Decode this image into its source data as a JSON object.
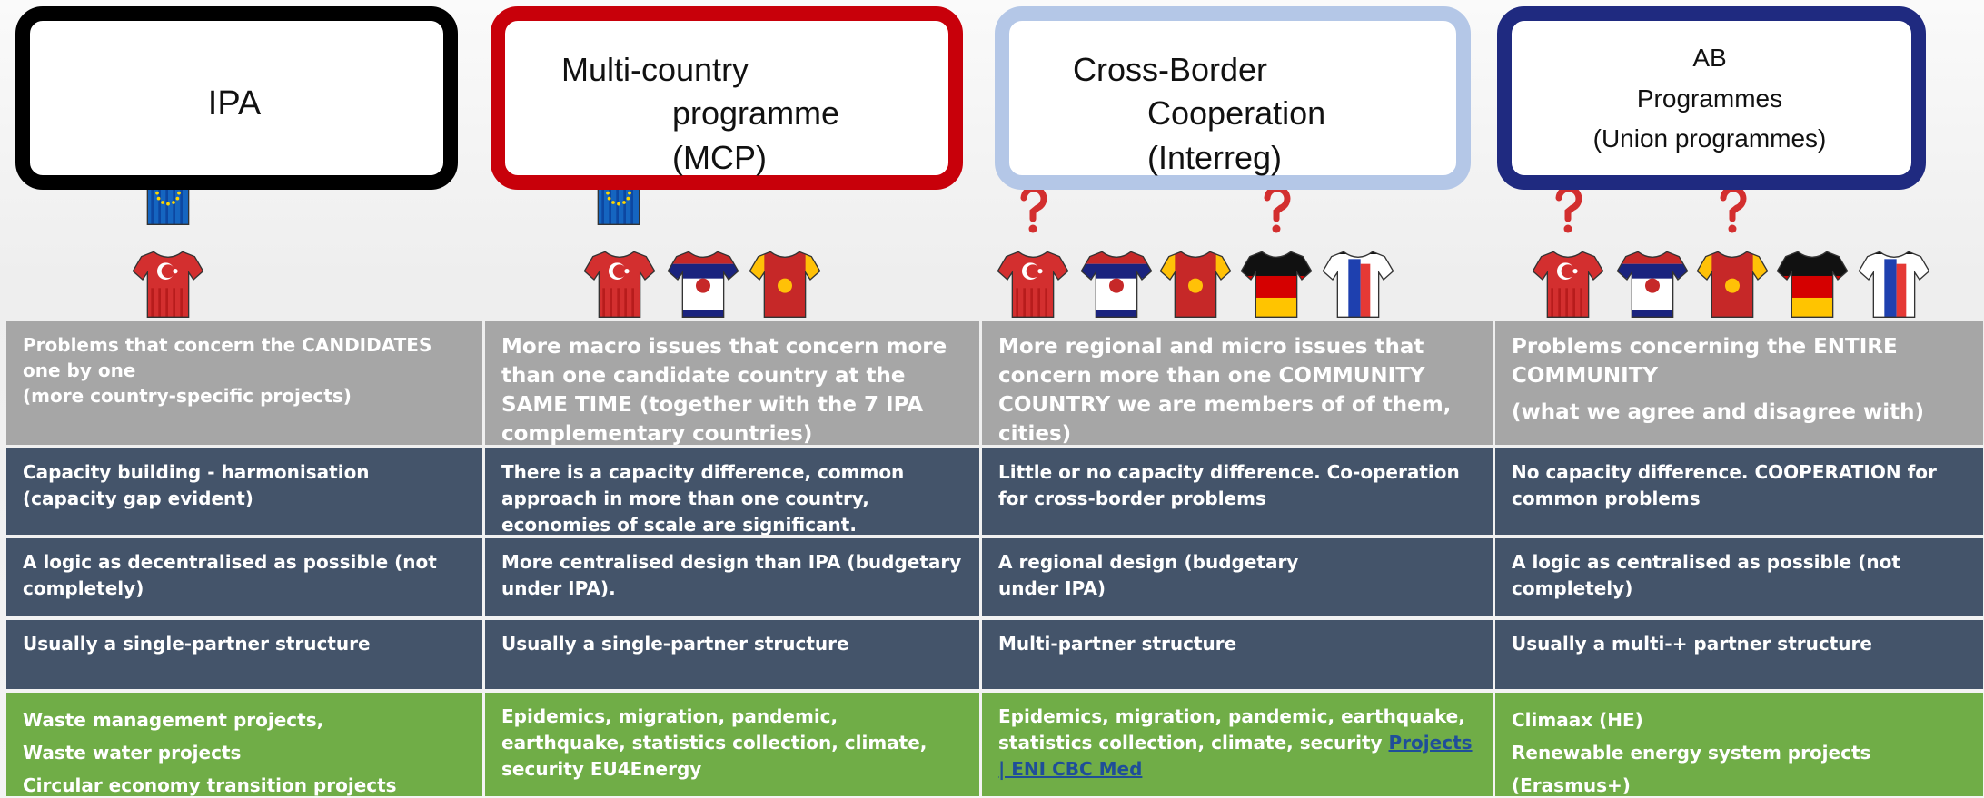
{
  "headers": [
    {
      "lines": [
        "IPA"
      ]
    },
    {
      "lines": [
        "Multi-country",
        "programme",
        "(MCP)"
      ]
    },
    {
      "lines": [
        "Cross-Border",
        "Cooperation",
        "(Interreg)"
      ]
    },
    {
      "lines": [
        "AB",
        "Programmes",
        "(Union programmes)"
      ]
    }
  ],
  "table": {
    "rows": [
      [
        {
          "paragraphs": [
            "Problems that concern the CANDIDATES one by one",
            "(more country-specific projects)"
          ]
        },
        {
          "paragraphs": [
            "More macro issues that concern more than one candidate country at the SAME TIME (together with the 7 IPA complementary countries)"
          ]
        },
        {
          "paragraphs": [
            "More regional and micro issues that concern more than one COMMUNITY COUNTRY we are members of of them, cities)"
          ]
        },
        {
          "paragraphs": [
            "Problems concerning the ENTIRE COMMUNITY",
            "(what we agree and disagree with)"
          ]
        }
      ],
      [
        {
          "paragraphs": [
            "Capacity building - harmonisation (capacity gap evident)"
          ]
        },
        {
          "paragraphs": [
            "There is a capacity difference, common approach in more than one country, economies of scale are significant."
          ]
        },
        {
          "paragraphs": [
            "Little or no capacity difference. Co-operation for cross-border problems"
          ]
        },
        {
          "paragraphs": [
            "No capacity difference. COOPERATION for common problems"
          ]
        }
      ],
      [
        {
          "paragraphs": [
            "A logic as decentralised as possible (not completely)"
          ]
        },
        {
          "paragraphs": [
            "More centralised design than IPA (budgetary under IPA)."
          ]
        },
        {
          "paragraphs": [
            "A regional design (budgetary",
            "under IPA)"
          ]
        },
        {
          "paragraphs": [
            "A logic as centralised as possible (not completely)"
          ]
        }
      ],
      [
        {
          "paragraphs": [
            "Usually a single-partner structure"
          ]
        },
        {
          "paragraphs": [
            "Usually a single-partner structure"
          ]
        },
        {
          "paragraphs": [
            "Multi-partner structure"
          ]
        },
        {
          "paragraphs": [
            "Usually a multi-+ partner structure"
          ]
        }
      ],
      [
        {
          "paragraphs": [
            "Waste management projects,",
            "Waste water projects",
            "Circular economy transition projects"
          ]
        },
        {
          "paragraphs": [
            "Epidemics, migration, pandemic, earthquake, statistics collection, climate, security EU4Energy"
          ]
        },
        {
          "paragraphs": [
            "Epidemics, migration, pandemic, earthquake, statistics collection, climate, security "
          ],
          "link": "Projects | ENI CBC Med"
        },
        {
          "paragraphs": [
            "Climaax (HE)",
            "Renewable energy system projects",
            "(Erasmus+)"
          ]
        }
      ]
    ]
  }
}
